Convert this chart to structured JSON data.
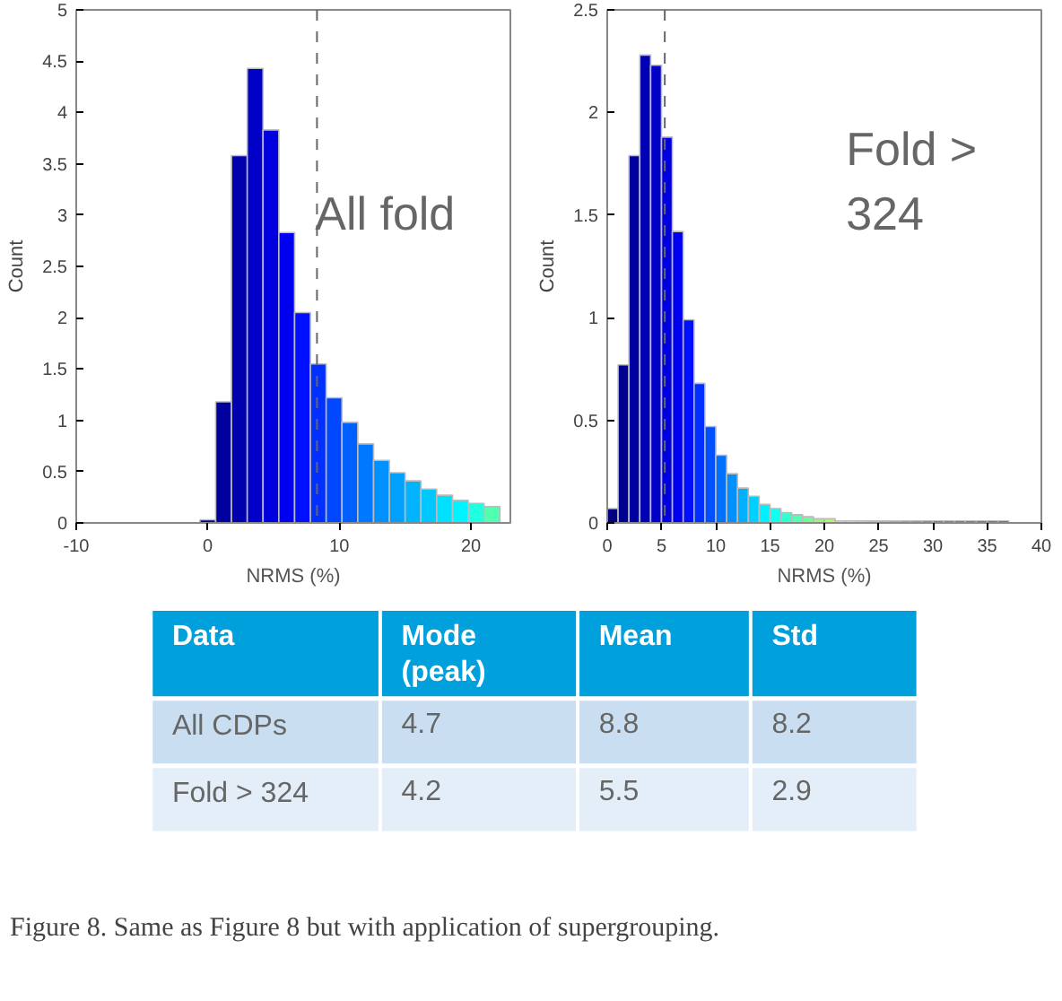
{
  "chart_data": [
    {
      "type": "histogram",
      "xlabel": "NRMS (%)",
      "ylabel": "Count",
      "annotations": [
        "All fold"
      ],
      "bins": [
        -0.6,
        0.6,
        1.8,
        3.0,
        4.2,
        5.4,
        6.6,
        7.8,
        9.0,
        10.2,
        11.4,
        12.6,
        13.8,
        15.0,
        16.2,
        17.4,
        18.6,
        19.8,
        21.0,
        22.2
      ],
      "values": [
        0.03,
        1.18,
        3.58,
        4.43,
        3.83,
        2.83,
        2.05,
        1.55,
        1.22,
        0.98,
        0.77,
        0.61,
        0.49,
        0.41,
        0.33,
        0.27,
        0.22,
        0.19,
        0.16
      ],
      "colors": [
        "#00008f",
        "#00009f",
        "#0000af",
        "#0000c8",
        "#0000df",
        "#0000f0",
        "#0010ff",
        "#0030ff",
        "#0048ff",
        "#0060ff",
        "#0078ff",
        "#0090ff",
        "#00a0ff",
        "#00b4ff",
        "#00c8ff",
        "#00e0ff",
        "#00f4ff",
        "#20ffdf",
        "#50ffb0"
      ],
      "xlim": [
        -10,
        23
      ],
      "xticks": [
        -10,
        0,
        10,
        20
      ],
      "ylim": [
        0,
        5
      ],
      "yticks": [
        0,
        0.5,
        1,
        1.5,
        2,
        2.5,
        3,
        3.5,
        4,
        4.5,
        5
      ],
      "grid": false,
      "ref_lines": [
        {
          "axis": "x",
          "value": 8.3,
          "color": "#666666",
          "line_style": "dashed"
        }
      ]
    },
    {
      "type": "histogram",
      "xlabel": "NRMS (%)",
      "ylabel": "Count",
      "annotations": [
        "Fold >\n324"
      ],
      "bins": [
        0,
        1,
        2,
        3,
        4,
        5,
        6,
        7,
        8,
        9,
        10,
        11,
        12,
        13,
        14,
        15,
        16,
        17,
        18,
        19,
        20,
        21,
        22,
        23,
        24,
        25,
        26,
        27,
        28,
        29,
        30,
        31,
        32,
        33,
        34,
        35,
        36,
        37
      ],
      "values": [
        0.07,
        0.77,
        1.79,
        2.28,
        2.23,
        1.88,
        1.42,
        0.99,
        0.68,
        0.47,
        0.33,
        0.24,
        0.17,
        0.13,
        0.09,
        0.07,
        0.05,
        0.04,
        0.03,
        0.02,
        0.02,
        0.01,
        0.01,
        0.01,
        0.01,
        0.01,
        0.01,
        0.01,
        0.01,
        0.01,
        0.01,
        0.01,
        0.01,
        0.01,
        0.01,
        0.01,
        0.01
      ],
      "colors": [
        "#000080",
        "#00008f",
        "#0000a0",
        "#0000b4",
        "#0000c8",
        "#0000dc",
        "#0000f0",
        "#0010ff",
        "#0030ff",
        "#0050ff",
        "#0070ff",
        "#0090ff",
        "#00b0ff",
        "#00d0ff",
        "#00f0ff",
        "#10ffef",
        "#30ffcf",
        "#50ffaf",
        "#70ff8f",
        "#90ff6f",
        "#b0ff4f",
        "#d0ff2f",
        "#f0ff0f",
        "#ffe000",
        "#ffc000",
        "#ffa000",
        "#ff8000",
        "#ff6000",
        "#ff4000",
        "#ff2000",
        "#ff0000",
        "#ef0000",
        "#df0000",
        "#cf0000",
        "#bf0000",
        "#af0000",
        "#9f0000"
      ],
      "xlim": [
        0,
        40
      ],
      "xticks": [
        0,
        5,
        10,
        15,
        20,
        25,
        30,
        35,
        40
      ],
      "ylim": [
        0,
        2.5
      ],
      "yticks": [
        0,
        0.5,
        1,
        1.5,
        2,
        2.5
      ],
      "grid": false,
      "ref_lines": [
        {
          "axis": "x",
          "value": 5.3,
          "color": "#666666",
          "line_style": "dashed"
        }
      ]
    },
    {
      "type": "other",
      "title": "Figure 8. Same as Figure 8 but with application of supergrouping.",
      "colors": [
        "#00a0dc",
        "#c9dff1",
        "#e4eef8"
      ],
      "annotations": [
        "Data",
        "Mode\n(peak)",
        "Mean",
        "Std",
        "All CDPs",
        "4.7",
        "8.8",
        "8.2",
        "Fold > 324",
        "4.2",
        "5.5",
        "2.9"
      ]
    }
  ]
}
